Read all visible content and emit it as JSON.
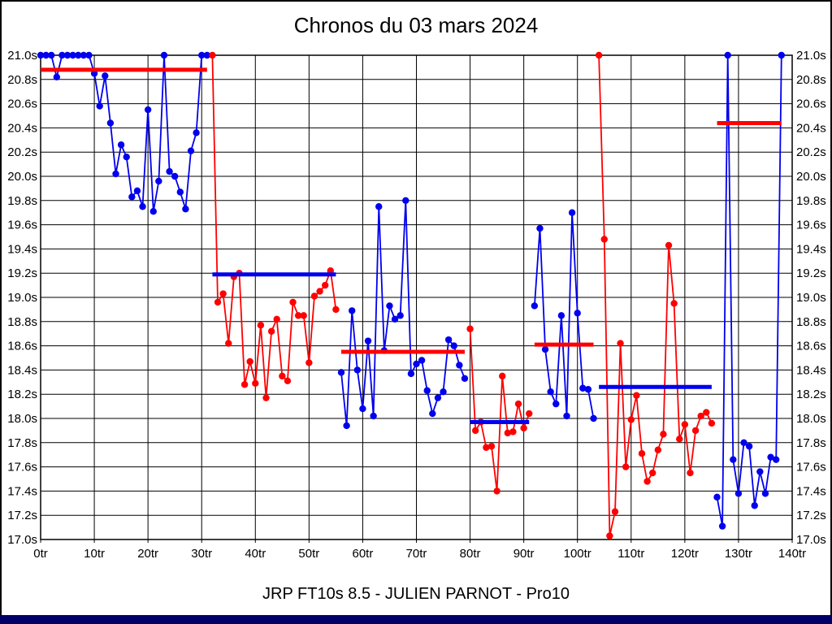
{
  "title": "Chronos du 03 mars 2024",
  "footer": "JRP FT10s 8.5 - JULIEN PARNOT - Pro10",
  "colors": {
    "red": "#ff0000",
    "blue": "#0000ee",
    "grid": "#000000",
    "background": "#ffffff",
    "bottom_bar": "#000066"
  },
  "chart_data": {
    "type": "line",
    "title": "Chronos du 03 mars 2024",
    "subtitle": "JRP FT10s 8.5 - JULIEN PARNOT - Pro10",
    "x_unit": "tr",
    "y_unit": "s",
    "xlim": [
      0,
      140
    ],
    "ylim": [
      17.0,
      21.0
    ],
    "grid": true,
    "x_tick_values": [
      0,
      10,
      20,
      30,
      40,
      50,
      60,
      70,
      80,
      90,
      100,
      110,
      120,
      130,
      140
    ],
    "x_tick_labels": [
      "0tr",
      "10tr",
      "20tr",
      "30tr",
      "40tr",
      "50tr",
      "60tr",
      "70tr",
      "80tr",
      "90tr",
      "100tr",
      "110tr",
      "120tr",
      "130tr",
      "140tr"
    ],
    "y_tick_values": [
      21.0,
      20.8,
      20.6,
      20.4,
      20.2,
      20.0,
      19.8,
      19.6,
      19.4,
      19.2,
      19.0,
      18.8,
      18.6,
      18.4,
      18.2,
      18.0,
      17.8,
      17.6,
      17.4,
      17.2,
      17.0
    ],
    "y_tick_labels": [
      "21.0s",
      "20.8s",
      "20.6s",
      "20.4s",
      "20.2s",
      "20.0s",
      "19.8s",
      "19.6s",
      "19.4s",
      "19.2s",
      "19.0s",
      "18.8s",
      "18.6s",
      "18.4s",
      "18.2s",
      "18.0s",
      "17.8s",
      "17.6s",
      "17.4s",
      "17.2s",
      "17.0s"
    ],
    "series": [
      {
        "name": "segment-1",
        "color": "blue",
        "start_lap": 0,
        "values": [
          21.0,
          21.0,
          21.0,
          20.82,
          21.0,
          21.0,
          21.0,
          21.0,
          21.0,
          21.0,
          20.85,
          20.58,
          20.83,
          20.44,
          20.02,
          20.26,
          20.16,
          19.83,
          19.88,
          19.75,
          20.55,
          19.71,
          19.96,
          21.0,
          20.04,
          20.0,
          19.87,
          19.73,
          20.21,
          20.36,
          21.0,
          21.0
        ]
      },
      {
        "name": "segment-2",
        "color": "red",
        "start_lap": 32,
        "values": [
          21.0,
          18.96,
          19.03,
          18.62,
          19.17,
          19.2,
          18.28,
          18.47,
          18.29,
          18.77,
          18.17,
          18.72,
          18.82,
          18.35,
          18.31,
          18.96,
          18.85,
          18.85,
          18.46,
          19.01,
          19.05,
          19.1,
          19.22,
          18.9
        ]
      },
      {
        "name": "segment-3",
        "color": "blue",
        "start_lap": 56,
        "values": [
          18.38,
          17.94,
          18.89,
          18.4,
          18.08,
          18.64,
          18.02,
          19.75,
          18.56,
          18.93,
          18.82,
          18.85,
          19.8,
          18.37,
          18.45,
          18.48,
          18.23,
          18.04,
          18.17,
          18.22,
          18.65,
          18.6,
          18.44,
          18.33
        ]
      },
      {
        "name": "segment-4",
        "color": "red",
        "start_lap": 80,
        "values": [
          18.74,
          17.9,
          17.97,
          17.76,
          17.77,
          17.4,
          18.35,
          17.88,
          17.89,
          18.12,
          17.92,
          18.04
        ]
      },
      {
        "name": "segment-5",
        "color": "blue",
        "start_lap": 92,
        "values": [
          18.93,
          19.57,
          18.57,
          18.22,
          18.12,
          18.85,
          18.02,
          19.7,
          18.87,
          18.25,
          18.24,
          18.0
        ]
      },
      {
        "name": "segment-6",
        "color": "red",
        "start_lap": 104,
        "values": [
          21.0,
          19.48,
          17.03,
          17.23,
          18.62,
          17.6,
          17.99,
          18.19,
          17.71,
          17.48,
          17.55,
          17.74,
          17.87,
          19.43,
          18.95,
          17.83,
          17.95,
          17.55,
          17.9,
          18.02,
          18.05,
          17.96
        ]
      },
      {
        "name": "segment-7",
        "color": "blue",
        "start_lap": 126,
        "values": [
          17.35,
          17.11,
          21.0,
          17.66,
          17.38,
          17.8,
          17.77,
          17.28,
          17.56,
          17.38,
          17.68,
          17.66,
          21.0
        ]
      }
    ],
    "average_lines": [
      {
        "name": "avg-line-1",
        "from_lap": 0,
        "to_lap": 31,
        "value": 20.88,
        "color": "red"
      },
      {
        "name": "avg-line-2",
        "from_lap": 32,
        "to_lap": 55,
        "value": 19.19,
        "color": "blue"
      },
      {
        "name": "avg-line-3",
        "from_lap": 56,
        "to_lap": 79,
        "value": 18.55,
        "color": "red"
      },
      {
        "name": "avg-line-4",
        "from_lap": 80,
        "to_lap": 91,
        "value": 17.97,
        "color": "blue"
      },
      {
        "name": "avg-line-5",
        "from_lap": 92,
        "to_lap": 103,
        "value": 18.61,
        "color": "red"
      },
      {
        "name": "avg-line-6",
        "from_lap": 104,
        "to_lap": 125,
        "value": 18.26,
        "color": "blue"
      },
      {
        "name": "avg-line-7",
        "from_lap": 126,
        "to_lap": 138,
        "value": 20.44,
        "color": "red"
      }
    ]
  }
}
